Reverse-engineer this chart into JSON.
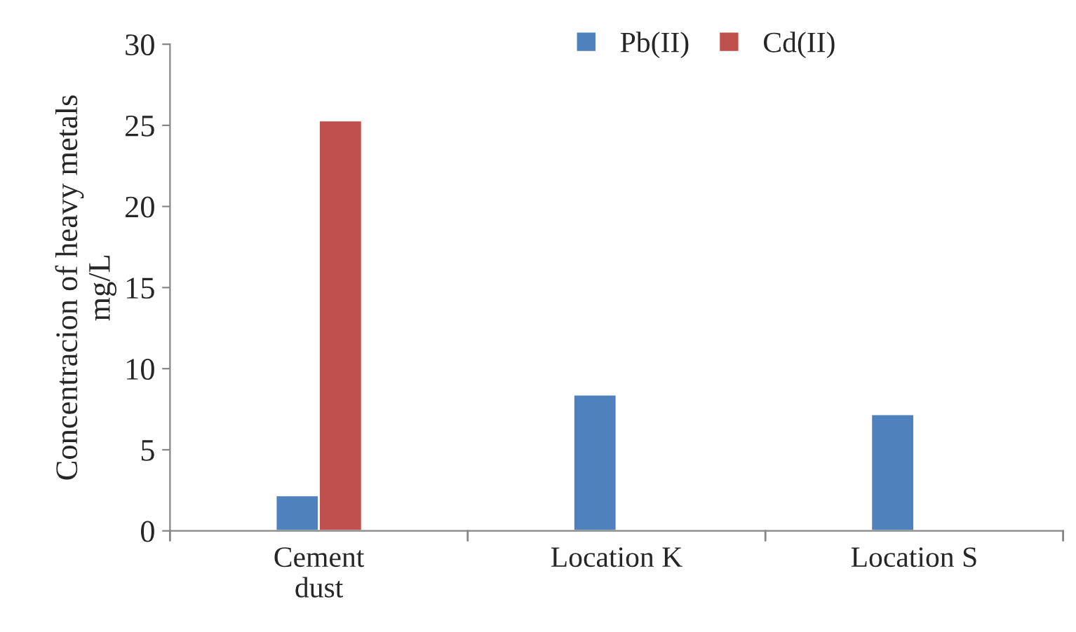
{
  "chart_data": {
    "type": "bar",
    "ylabel": "Concentracion of heavy metals\nmg/L",
    "categories": [
      "Cement\ndust",
      "Location K",
      "Location S"
    ],
    "series": [
      {
        "name": "Pb(II)",
        "color": "#4f81bd",
        "values": [
          2.2,
          8.4,
          7.2
        ]
      },
      {
        "name": "Cd(II)",
        "color": "#c0504d",
        "values": [
          25.3,
          null,
          null
        ]
      }
    ],
    "ylim": [
      0,
      30
    ],
    "yticks": [
      0,
      5,
      10,
      15,
      20,
      25,
      30
    ],
    "grid": false,
    "legend": "top"
  }
}
